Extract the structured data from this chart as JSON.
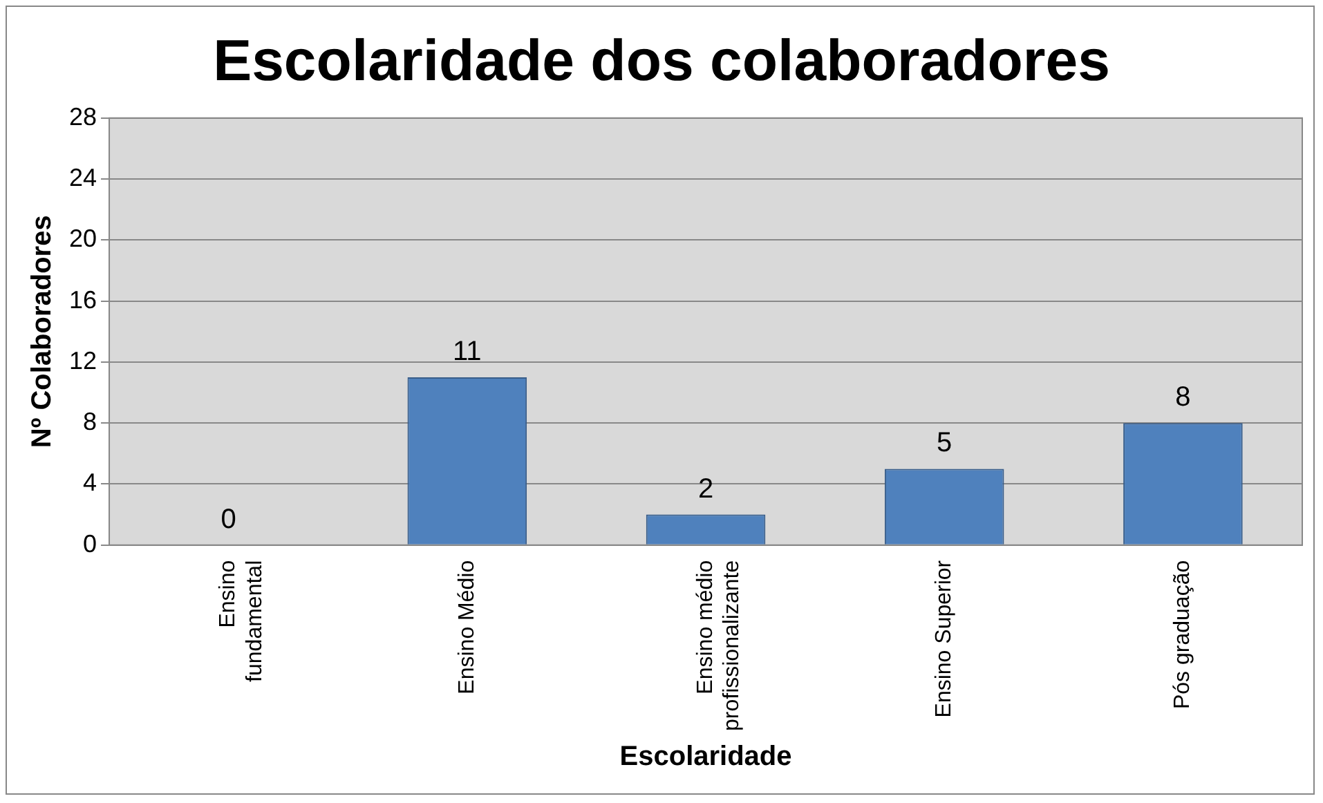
{
  "chart_data": {
    "type": "bar",
    "title": "Escolaridade dos colaboradores",
    "xlabel": "Escolaridade",
    "ylabel": "Nº Colaboradores",
    "categories": [
      "Ensino fundamental",
      "Ensino Médio",
      "Ensino médio profissionalizante",
      "Ensino Superior",
      "Pós graduação"
    ],
    "values": [
      0,
      11,
      2,
      5,
      8
    ],
    "color": "#4f81bd",
    "ylim": [
      0,
      28
    ],
    "yticks": [
      0,
      4,
      8,
      12,
      16,
      20,
      24,
      28
    ],
    "grid": "y",
    "data_labels": true,
    "legend": false
  }
}
